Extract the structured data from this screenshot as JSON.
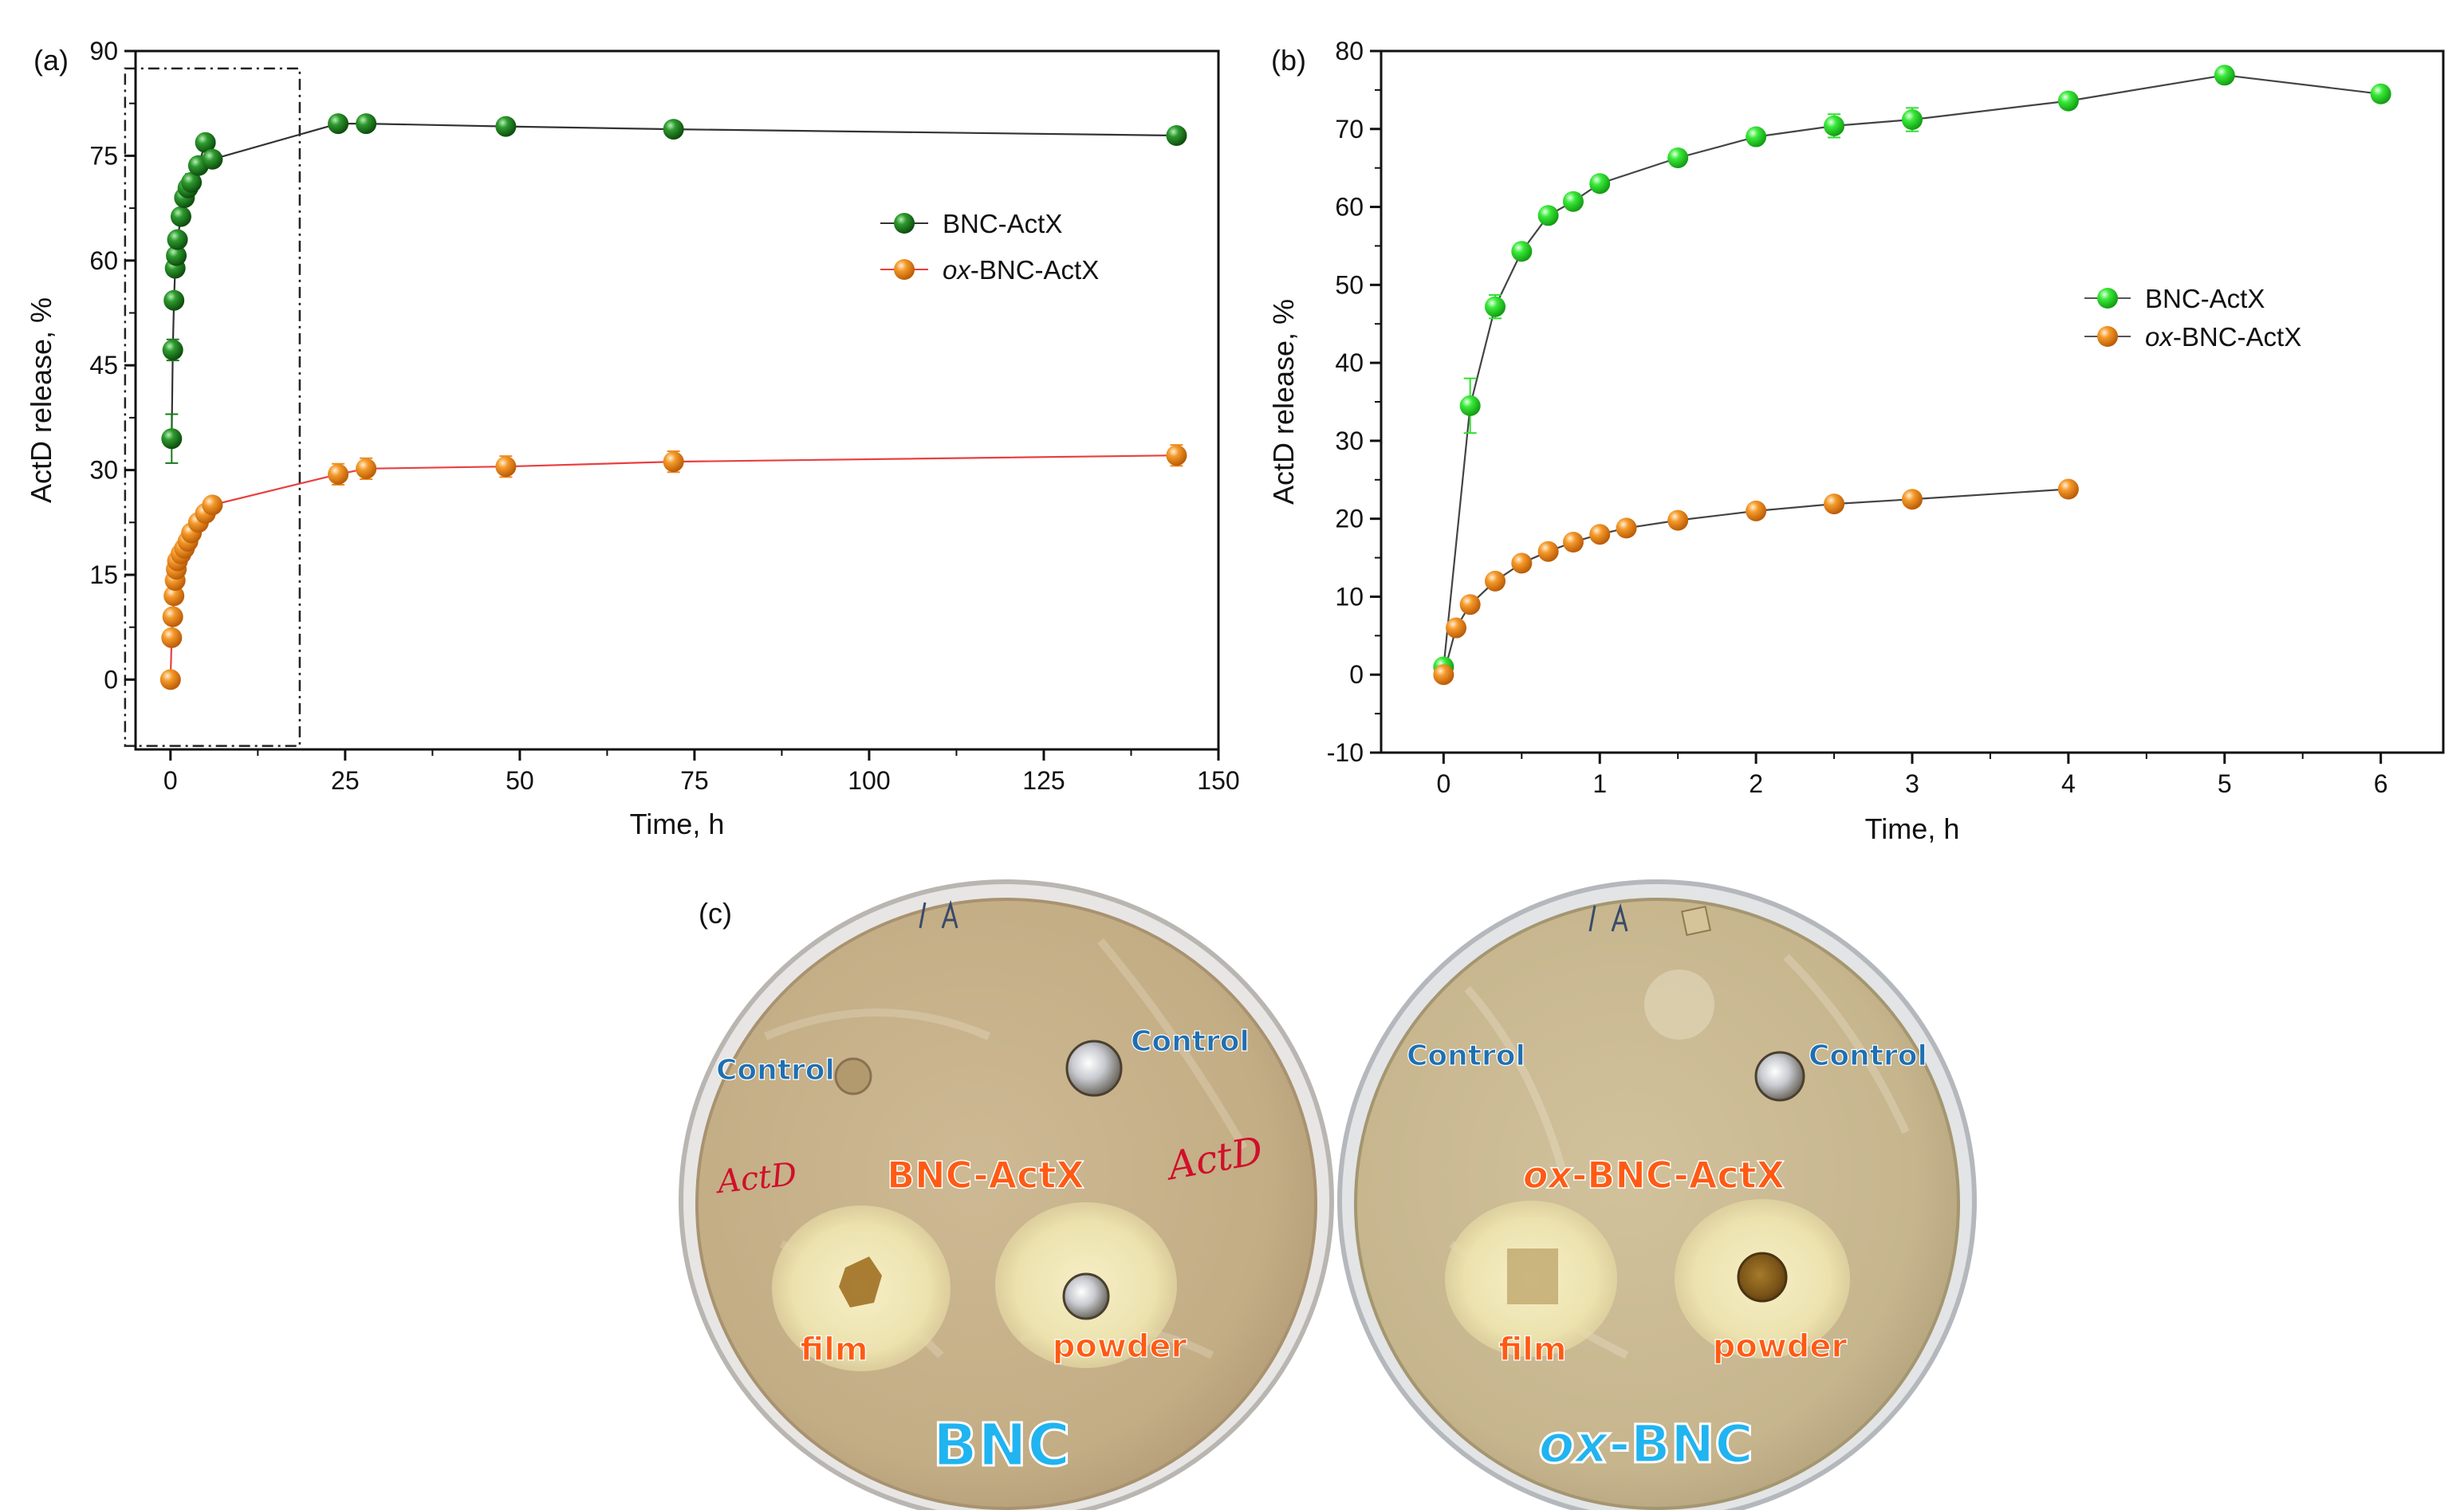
{
  "chart_data": [
    {
      "panel": "(a)",
      "type": "line",
      "xlabel": "Time, h",
      "ylabel": "ActD release, %",
      "xlim": [
        -5,
        150
      ],
      "ylim": [
        -10,
        90
      ],
      "xticks": [
        0,
        25,
        50,
        75,
        100,
        125,
        150
      ],
      "yticks": [
        0,
        15,
        30,
        45,
        60,
        75,
        90
      ],
      "highlight_box": {
        "x_range": [
          -6.5,
          18.5
        ],
        "y_range": [
          -9.5,
          87.5
        ]
      },
      "legend_position": "right",
      "series": [
        {
          "name": "BNC-ActX",
          "color": "#1a7a1a",
          "x": [
            0.17,
            0.33,
            0.5,
            0.67,
            0.83,
            1,
            1.5,
            2,
            2.5,
            3,
            4,
            5,
            6,
            24,
            28,
            48,
            72,
            144
          ],
          "y": [
            34.5,
            47.2,
            54.3,
            58.9,
            60.7,
            63.0,
            66.3,
            69.0,
            70.4,
            71.2,
            73.6,
            76.9,
            74.5,
            79.6,
            79.6,
            79.2,
            78.8,
            77.9
          ],
          "err": [
            3.5,
            1.5,
            1.0,
            1.0,
            1.0,
            1.0,
            1.0,
            1.0,
            1.2,
            1.2,
            1.0,
            1.0,
            1.0,
            1.0,
            1.0,
            1.0,
            1.0,
            1.0
          ]
        },
        {
          "name": "ox-BNC-ActX",
          "color": "#f08a1c",
          "x": [
            0,
            0.17,
            0.33,
            0.5,
            0.67,
            0.83,
            1,
            1.5,
            2,
            2.5,
            3,
            4,
            5,
            6,
            24,
            28,
            48,
            72,
            144
          ],
          "y": [
            0,
            6.0,
            9.0,
            12.0,
            14.2,
            15.8,
            17.0,
            18.0,
            18.8,
            19.8,
            21.0,
            22.5,
            23.8,
            25.0,
            29.4,
            30.2,
            30.5,
            31.2,
            32.1
          ],
          "err": [
            0,
            0.5,
            0.5,
            0.5,
            0.5,
            0.5,
            0.5,
            0.5,
            0.5,
            0.5,
            0.5,
            0.5,
            0.6,
            0.6,
            1.5,
            1.5,
            1.5,
            1.5,
            1.5
          ]
        }
      ]
    },
    {
      "panel": "(b)",
      "type": "line",
      "xlabel": "Time, h",
      "ylabel": "ActD release, %",
      "xlim": [
        -0.4,
        6.4
      ],
      "ylim": [
        -10,
        80
      ],
      "xticks": [
        0,
        1,
        2,
        3,
        4,
        5,
        6
      ],
      "yticks": [
        -10,
        0,
        10,
        20,
        30,
        40,
        50,
        60,
        70,
        80
      ],
      "legend_position": "right",
      "series": [
        {
          "name": "BNC-ActX",
          "color": "#2fe02f",
          "x": [
            0,
            0.17,
            0.33,
            0.5,
            0.67,
            0.83,
            1,
            1.5,
            2,
            2.5,
            3,
            4,
            5,
            6
          ],
          "y": [
            1.0,
            34.5,
            47.2,
            54.3,
            58.9,
            60.7,
            63.0,
            66.3,
            69.0,
            70.4,
            71.2,
            73.6,
            76.9,
            74.5
          ],
          "err": [
            0,
            3.5,
            1.5,
            1.0,
            1.0,
            1.0,
            1.0,
            1.0,
            1.0,
            1.5,
            1.5,
            1.0,
            1.0,
            1.0
          ]
        },
        {
          "name": "ox-BNC-ActX",
          "color": "#f08a1c",
          "x": [
            0,
            0.08,
            0.17,
            0.33,
            0.5,
            0.67,
            0.83,
            1,
            1.17,
            1.5,
            2,
            2.5,
            3,
            4
          ],
          "y": [
            0,
            6.0,
            9.0,
            12.0,
            14.3,
            15.8,
            17.0,
            18.0,
            18.8,
            19.8,
            21.0,
            21.9,
            22.5,
            23.8
          ],
          "err": [
            0,
            0.5,
            0.5,
            0.5,
            0.5,
            0.5,
            0.5,
            0.5,
            0.5,
            0.5,
            0.5,
            0.5,
            0.5,
            0.5
          ]
        }
      ]
    }
  ],
  "panel_c": {
    "label": "(c)",
    "left_plate": {
      "title": "BNC",
      "sample_name": "BNC-ActX",
      "control_left": "Control",
      "control_right": "Control",
      "handwritten_top": "LA",
      "handwritten_left": "ActD",
      "handwritten_right": "ActD",
      "film_label": "film",
      "powder_label": "powder"
    },
    "right_plate": {
      "title": "ox-BNC",
      "title_prefix": "ox",
      "title_suffix": "-BNC",
      "sample_prefix": "ox",
      "sample_suffix": "-BNC-ActX",
      "control_left": "Control",
      "control_right": "Control",
      "handwritten_top": "LA",
      "film_label": "film",
      "powder_label": "powder"
    },
    "colors": {
      "label_orange": "#ff5a14",
      "control_blue": "#1f6fb2",
      "title_cyan": "#20b4f0",
      "ink_red": "#d0102a",
      "agar": "#c9b48c",
      "zone": "#efe6b4"
    }
  }
}
